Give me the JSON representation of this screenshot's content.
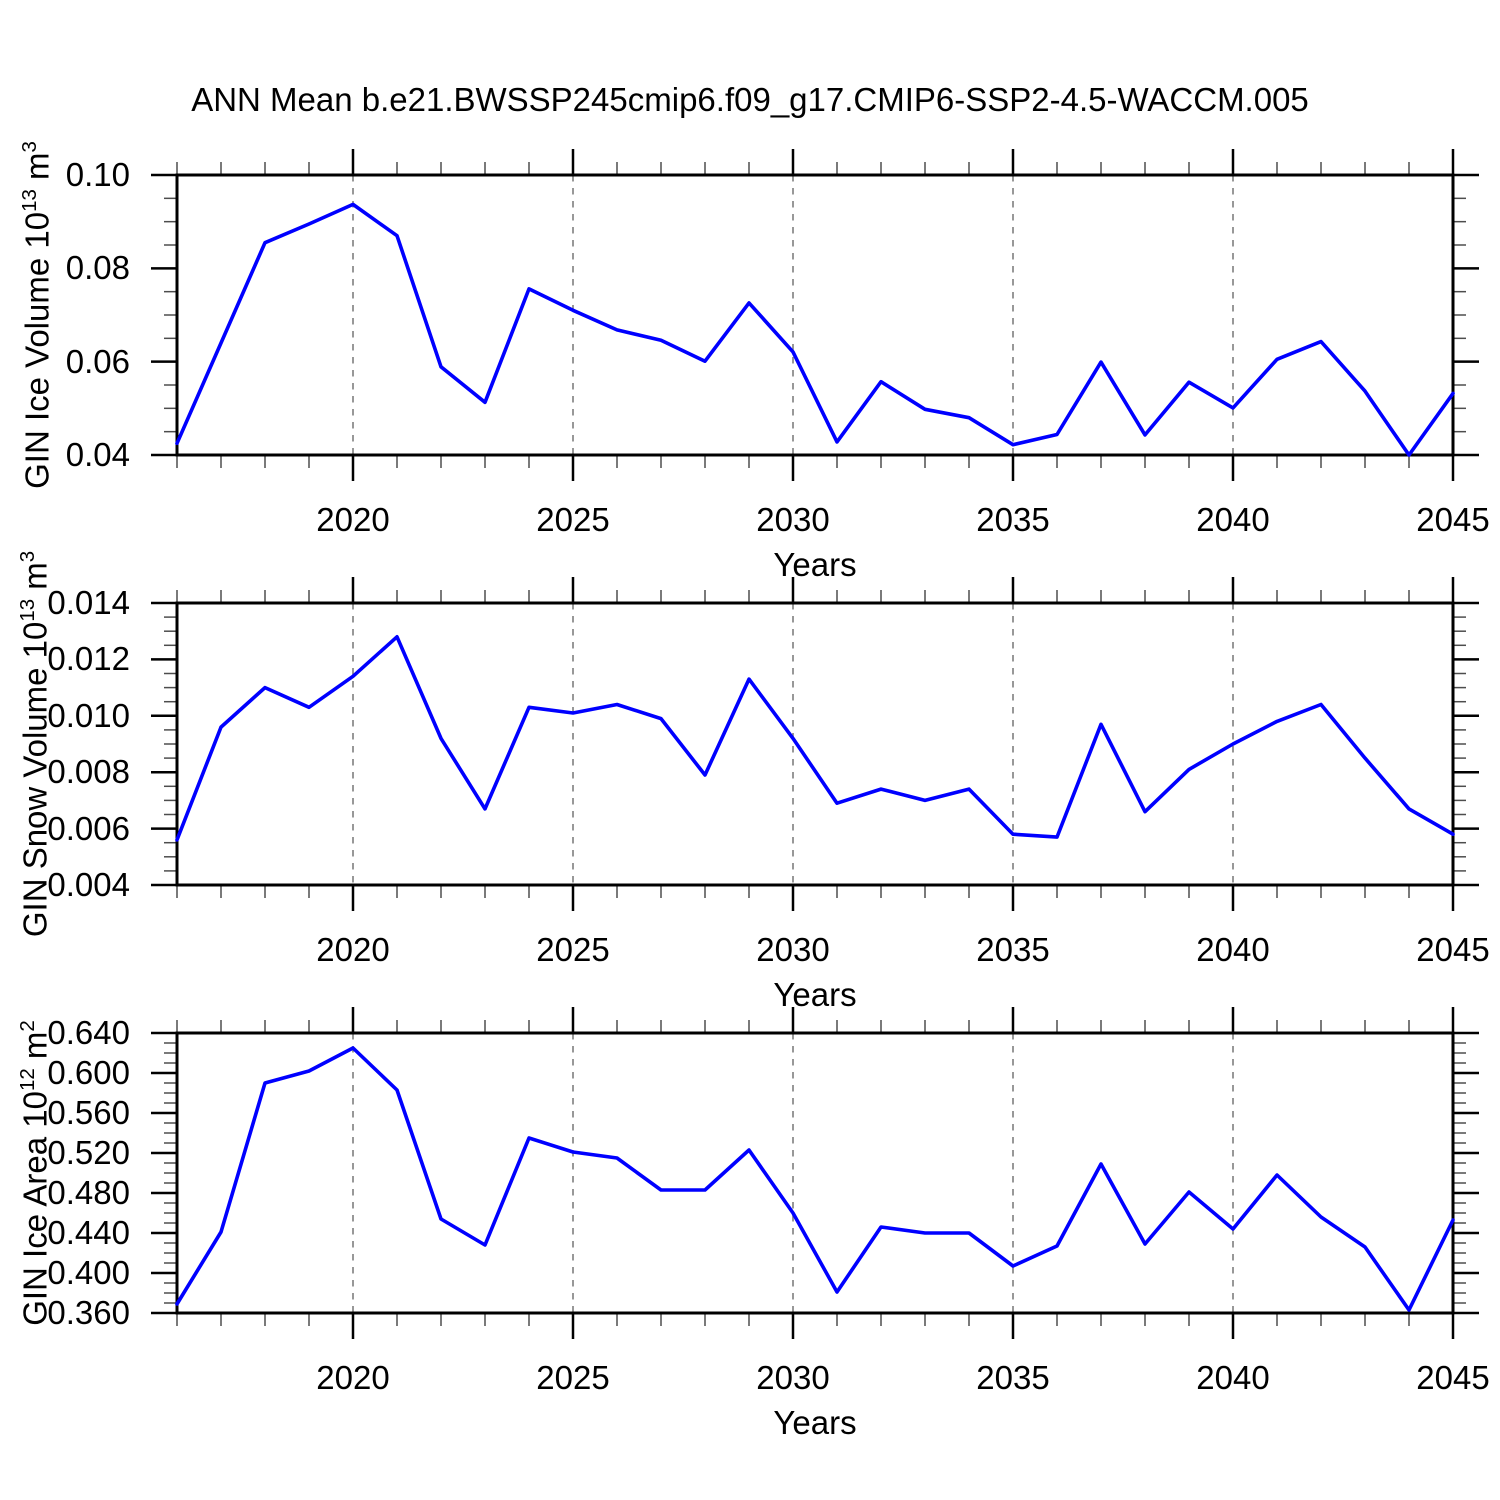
{
  "chart_data": [
    {
      "type": "line",
      "title": "ANN Mean b.e21.BWSSP245cmip6.f09_g17.CMIP6-SSP2-4.5-WACCM.005",
      "xlabel": "Years",
      "ylabel": "GIN Ice Volume 10^13 m^3",
      "ylabel_parts": {
        "prefix": "GIN Ice Volume 10",
        "exp": "13",
        "unit": " m",
        "unit_exp": "3"
      },
      "x": [
        2016,
        2017,
        2018,
        2019,
        2020,
        2021,
        2022,
        2023,
        2024,
        2025,
        2026,
        2027,
        2028,
        2029,
        2030,
        2031,
        2032,
        2033,
        2034,
        2035,
        2036,
        2037,
        2038,
        2039,
        2040,
        2041,
        2042,
        2043,
        2044,
        2045
      ],
      "series": [
        {
          "name": "GIN Ice Volume",
          "color": "#0000ff",
          "values": [
            0.0425,
            0.064,
            0.0855,
            0.0895,
            0.0937,
            0.087,
            0.0589,
            0.0513,
            0.0756,
            0.071,
            0.0668,
            0.0646,
            0.0601,
            0.0726,
            0.0621,
            0.0428,
            0.0557,
            0.0498,
            0.048,
            0.0422,
            0.0444,
            0.0599,
            0.0443,
            0.0556,
            0.0501,
            0.0605,
            0.0643,
            0.0537,
            0.04,
            0.0532
          ]
        }
      ],
      "xlim": [
        2016,
        2045
      ],
      "ylim": [
        0.04,
        0.1
      ],
      "xtick_labels": [
        "2020",
        "2025",
        "2030",
        "2035",
        "2040",
        "2045"
      ],
      "ytick_labels": [
        "0.10",
        "0.08",
        "0.06",
        "0.04"
      ],
      "yminor_step": 0.005,
      "xminor_step": 1,
      "grid": "vertical-dashed-at-major-xticks",
      "legend": "none"
    },
    {
      "type": "line",
      "title": "",
      "xlabel": "Years",
      "ylabel": "GIN Snow Volume 10^13 m^3",
      "ylabel_parts": {
        "prefix": "GIN Snow Volume 10",
        "exp": "13",
        "unit": " m",
        "unit_exp": "3"
      },
      "x": [
        2016,
        2017,
        2018,
        2019,
        2020,
        2021,
        2022,
        2023,
        2024,
        2025,
        2026,
        2027,
        2028,
        2029,
        2030,
        2031,
        2032,
        2033,
        2034,
        2035,
        2036,
        2037,
        2038,
        2039,
        2040,
        2041,
        2042,
        2043,
        2044,
        2045
      ],
      "series": [
        {
          "name": "GIN Snow Volume",
          "color": "#0000ff",
          "values": [
            0.0056,
            0.0096,
            0.011,
            0.0103,
            0.0114,
            0.0128,
            0.0092,
            0.0067,
            0.0103,
            0.0101,
            0.0104,
            0.0099,
            0.0079,
            0.0113,
            0.0092,
            0.0069,
            0.0074,
            0.007,
            0.0074,
            0.0058,
            0.0057,
            0.0097,
            0.0066,
            0.0081,
            0.009,
            0.0098,
            0.0104,
            0.0085,
            0.0067,
            0.0058
          ]
        }
      ],
      "xlim": [
        2016,
        2045
      ],
      "ylim": [
        0.004,
        0.014
      ],
      "xtick_labels": [
        "2020",
        "2025",
        "2030",
        "2035",
        "2040",
        "2045"
      ],
      "ytick_labels": [
        "0.014",
        "0.012",
        "0.010",
        "0.008",
        "0.006",
        "0.004"
      ],
      "yminor_step": 0.0005,
      "xminor_step": 1,
      "grid": "vertical-dashed-at-major-xticks",
      "legend": "none"
    },
    {
      "type": "line",
      "title": "",
      "xlabel": "Years",
      "ylabel": "GIN Ice Area 10^12 m^2",
      "ylabel_parts": {
        "prefix": "GIN Ice Area 10",
        "exp": "12",
        "unit": " m",
        "unit_exp": "2"
      },
      "x": [
        2016,
        2017,
        2018,
        2019,
        2020,
        2021,
        2022,
        2023,
        2024,
        2025,
        2026,
        2027,
        2028,
        2029,
        2030,
        2031,
        2032,
        2033,
        2034,
        2035,
        2036,
        2037,
        2038,
        2039,
        2040,
        2041,
        2042,
        2043,
        2044,
        2045
      ],
      "series": [
        {
          "name": "GIN Ice Area",
          "color": "#0000ff",
          "values": [
            0.369,
            0.441,
            0.59,
            0.602,
            0.625,
            0.583,
            0.454,
            0.428,
            0.535,
            0.521,
            0.515,
            0.483,
            0.483,
            0.523,
            0.46,
            0.381,
            0.446,
            0.44,
            0.44,
            0.407,
            0.427,
            0.509,
            0.429,
            0.481,
            0.444,
            0.498,
            0.456,
            0.426,
            0.363,
            0.453
          ]
        }
      ],
      "xlim": [
        2016,
        2045
      ],
      "ylim": [
        0.36,
        0.64
      ],
      "xtick_labels": [
        "2020",
        "2025",
        "2030",
        "2035",
        "2040",
        "2045"
      ],
      "ytick_labels": [
        "0.640",
        "0.600",
        "0.560",
        "0.520",
        "0.480",
        "0.440",
        "0.400",
        "0.360"
      ],
      "yminor_step": 0.01,
      "xminor_step": 1,
      "grid": "vertical-dashed-at-major-xticks",
      "legend": "none"
    }
  ]
}
